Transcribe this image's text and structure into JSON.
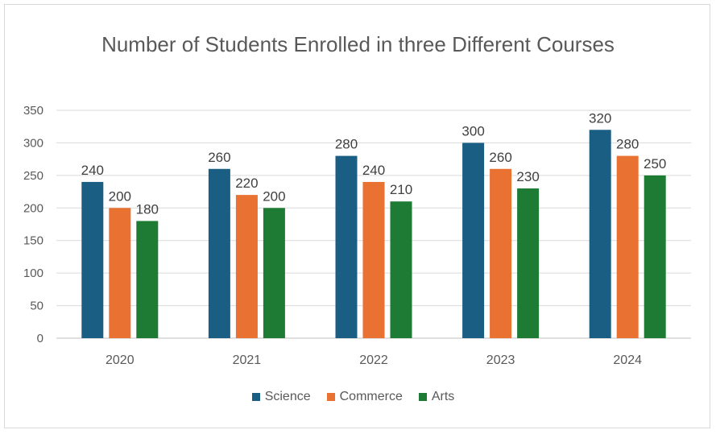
{
  "chart_data": {
    "type": "bar",
    "title": "Number of Students Enrolled in three Different Courses",
    "categories": [
      "2020",
      "2021",
      "2022",
      "2023",
      "2024"
    ],
    "series": [
      {
        "name": "Science",
        "color": "#1b5e83",
        "values": [
          240,
          260,
          280,
          300,
          320
        ]
      },
      {
        "name": "Commerce",
        "color": "#e97132",
        "values": [
          200,
          220,
          240,
          260,
          280
        ]
      },
      {
        "name": "Arts",
        "color": "#1e7b34",
        "values": [
          180,
          200,
          210,
          230,
          250
        ]
      }
    ],
    "ylim": [
      0,
      350
    ],
    "yticks": [
      "0",
      "50",
      "100",
      "150",
      "200",
      "250",
      "300",
      "350"
    ],
    "grid": true,
    "legend": "bottom",
    "data_labels": true
  }
}
